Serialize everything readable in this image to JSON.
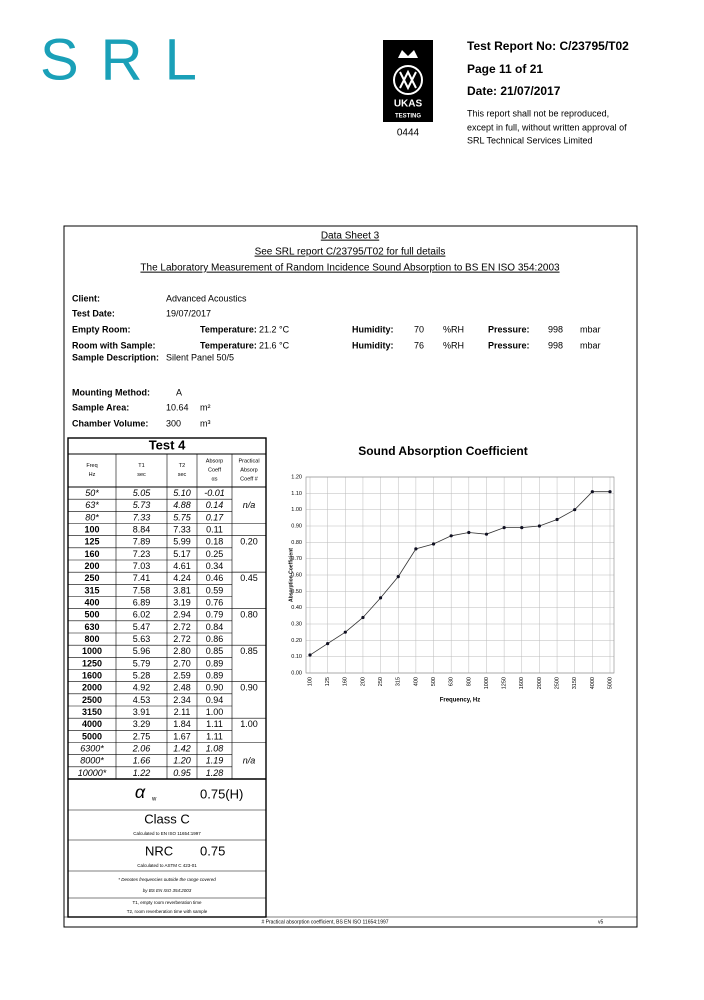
{
  "header": {
    "logo": "SRL",
    "ukas": "UKAS",
    "ukas_sub": "TESTING",
    "ukas_number": "0444",
    "report_no": "Test Report No: C/23795/T02",
    "page": "Page 11 of 21",
    "date": "Date: 21/07/2017",
    "notice": [
      "This report shall not be reproduced,",
      "except in full, without written approval of",
      "SRL Technical Services Limited"
    ]
  },
  "sheet": {
    "titles": [
      "Data Sheet 3",
      "See SRL report C/23795/T02 for full details",
      "The Laboratory Measurement of Random Incidence Sound Absorption to BS EN ISO 354:2003"
    ],
    "client": {
      "label": "Client:",
      "value": "Advanced Acoustics"
    },
    "test_date": {
      "label": "Test Date:",
      "value": "19/07/2017"
    },
    "empty_room": {
      "label": "Empty Room:",
      "temperature_label": "Temperature:",
      "temperature": "21.2",
      "temperature_unit": "°C",
      "humidity_label": "Humidity:",
      "humidity": "70",
      "humidity_unit": "%RH",
      "pressure_label": "Pressure:",
      "pressure": "998",
      "pressure_unit": "mbar"
    },
    "room_with_sample": {
      "label": "Room with Sample:",
      "temperature_label": "Temperature:",
      "temperature": "21.6",
      "temperature_unit": "°C",
      "humidity_label": "Humidity:",
      "humidity": "76",
      "humidity_unit": "%RH",
      "pressure_label": "Pressure:",
      "pressure": "998",
      "pressure_unit": "mbar"
    },
    "sample_description": {
      "label": "Sample Description:",
      "value": "Silent Panel 50/5"
    },
    "mounting": {
      "label": "Mounting Method:",
      "value": "A"
    },
    "area": {
      "label": "Sample Area:",
      "value": "10.64",
      "unit": "m²"
    },
    "volume": {
      "label": "Chamber Volume:",
      "value": "300",
      "unit": "m³"
    }
  },
  "table": {
    "title": "Test 4",
    "headers": [
      [
        "Freq",
        "Hz"
      ],
      [
        "T1",
        "sec"
      ],
      [
        "T2",
        "sec"
      ],
      [
        "Absorp",
        "Coeff",
        "αs"
      ],
      [
        "Practical",
        "Absorp",
        "Coeff #"
      ]
    ],
    "rows": [
      [
        "50*",
        "5.05",
        "5.10",
        "-0.01",
        null
      ],
      [
        "63*",
        "5.73",
        "4.88",
        "0.14",
        "n/a"
      ],
      [
        "80*",
        "7.33",
        "5.75",
        "0.17",
        null
      ],
      [
        "100",
        "8.84",
        "7.33",
        "0.11",
        null
      ],
      [
        "125",
        "7.89",
        "5.99",
        "0.18",
        "0.20"
      ],
      [
        "160",
        "7.23",
        "5.17",
        "0.25",
        null
      ],
      [
        "200",
        "7.03",
        "4.61",
        "0.34",
        null
      ],
      [
        "250",
        "7.41",
        "4.24",
        "0.46",
        "0.45"
      ],
      [
        "315",
        "7.58",
        "3.81",
        "0.59",
        null
      ],
      [
        "400",
        "6.89",
        "3.19",
        "0.76",
        null
      ],
      [
        "500",
        "6.02",
        "2.94",
        "0.79",
        "0.80"
      ],
      [
        "630",
        "5.47",
        "2.72",
        "0.84",
        null
      ],
      [
        "800",
        "5.63",
        "2.72",
        "0.86",
        null
      ],
      [
        "1000",
        "5.96",
        "2.80",
        "0.85",
        "0.85"
      ],
      [
        "1250",
        "5.79",
        "2.70",
        "0.89",
        null
      ],
      [
        "1600",
        "5.28",
        "2.59",
        "0.89",
        null
      ],
      [
        "2000",
        "4.92",
        "2.48",
        "0.90",
        "0.90"
      ],
      [
        "2500",
        "4.53",
        "2.34",
        "0.94",
        null
      ],
      [
        "3150",
        "3.91",
        "2.11",
        "1.00",
        null
      ],
      [
        "4000",
        "3.29",
        "1.84",
        "1.11",
        "1.00"
      ],
      [
        "5000",
        "2.75",
        "1.67",
        "1.11",
        null
      ],
      [
        "6300*",
        "2.06",
        "1.42",
        "1.08",
        null
      ],
      [
        "8000*",
        "1.66",
        "1.20",
        "1.19",
        "n/a"
      ],
      [
        "10000*",
        "1.22",
        "0.95",
        "1.28",
        null
      ]
    ]
  },
  "summary": {
    "alpha_symbol": "α",
    "alpha_sub": "w",
    "alpha_w": "0.75(H)",
    "class": "Class C",
    "class_note": "Calculated to EN ISO 11654:1997",
    "nrc_label": "NRC",
    "nrc": "0.75",
    "nrc_note": "Calculated to ASTM C 423-01",
    "notes": [
      "* Denotes frequencies outside the range covered",
      "by BS EN ISO 354:2003"
    ],
    "definitions": [
      "T1, empty room reverberation time",
      "T2, room reverberation time with sample"
    ]
  },
  "footer": {
    "note": "# Practical absorption coefficient, BS EN ISO 11654:1997",
    "version": "v5"
  },
  "chart_data": {
    "type": "line",
    "title": "Sound Absorption Coefficient",
    "x_label": "Frequency, Hz",
    "y_label": "Absorption Coefficient",
    "color": "#333333",
    "grid": true,
    "categories": [
      "100",
      "125",
      "160",
      "200",
      "250",
      "315",
      "400",
      "500",
      "630",
      "800",
      "1000",
      "1250",
      "1600",
      "2000",
      "2500",
      "3150",
      "4000",
      "5000"
    ],
    "values": [
      0.11,
      0.18,
      0.25,
      0.34,
      0.46,
      0.59,
      0.76,
      0.79,
      0.84,
      0.86,
      0.85,
      0.89,
      0.89,
      0.9,
      0.94,
      1.0,
      1.11,
      1.11
    ],
    "ylim": [
      0,
      1.2
    ],
    "yticks": [
      {
        "value": 0,
        "label": "0.00"
      },
      {
        "value": 0.1,
        "label": "0.10"
      },
      {
        "value": 0.2,
        "label": "0.20"
      },
      {
        "value": 0.3,
        "label": "0.30"
      },
      {
        "value": 0.4,
        "label": "0.40"
      },
      {
        "value": 0.5,
        "label": "0.50"
      },
      {
        "value": 0.6,
        "label": "0.60"
      },
      {
        "value": 0.7,
        "label": "0.70"
      },
      {
        "value": 0.8,
        "label": "0.80"
      },
      {
        "value": 0.9,
        "label": "0.90"
      },
      {
        "value": 1,
        "label": "1.00"
      },
      {
        "value": 1.1,
        "label": "1.10"
      },
      {
        "value": 1.2,
        "label": "1.20"
      }
    ]
  }
}
